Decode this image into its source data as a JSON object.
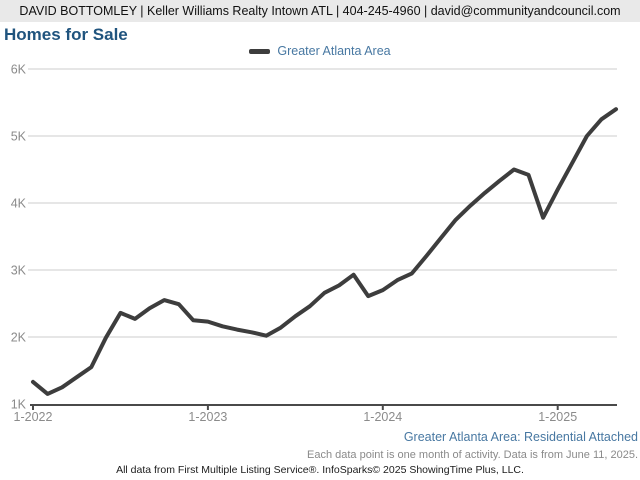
{
  "header": {
    "contact_line": "DAVID BOTTOMLEY | Keller Williams Realty Intown ATL | 404-245-4960 | david@communityandcouncil.com"
  },
  "title": "Homes for Sale",
  "legend": {
    "label": "Greater Atlanta Area"
  },
  "footnotes": {
    "series_caption": "Greater Atlanta Area: Residential Attached",
    "data_note": "Each data point is one month of activity. Data is from June 11, 2025.",
    "attribution": "All data from First Multiple Listing Service®. InfoSparks© 2025 ShowingTime Plus, LLC."
  },
  "colors": {
    "header_bg": "#e9e9e9",
    "header_text": "#111111",
    "accent_blue_dark": "#20547e",
    "accent_blue": "#4878a2",
    "grid": "#cccccc",
    "axis": "#4a4a4a",
    "axis_label": "#8b8b8b",
    "muted_text": "#8a8a8a",
    "footer_text": "#1c1c1c"
  },
  "chart_data": {
    "type": "line",
    "title": "Homes for Sale",
    "xlabel": "",
    "ylabel": "",
    "grid": true,
    "legend_position": "top-center",
    "ylim": [
      1000,
      6000
    ],
    "y_ticks": [
      1000,
      2000,
      3000,
      4000,
      5000,
      6000
    ],
    "y_tick_labels": [
      "1K",
      "2K",
      "3K",
      "4K",
      "5K",
      "6K"
    ],
    "x_tick_labels": [
      "1-2022",
      "1-2023",
      "1-2024",
      "1-2025"
    ],
    "x_tick_indices": [
      0,
      12,
      24,
      36
    ],
    "x": [
      "1-2022",
      "2-2022",
      "3-2022",
      "4-2022",
      "5-2022",
      "6-2022",
      "7-2022",
      "8-2022",
      "9-2022",
      "10-2022",
      "11-2022",
      "12-2022",
      "1-2023",
      "2-2023",
      "3-2023",
      "4-2023",
      "5-2023",
      "6-2023",
      "7-2023",
      "8-2023",
      "9-2023",
      "10-2023",
      "11-2023",
      "12-2023",
      "1-2024",
      "2-2024",
      "3-2024",
      "4-2024",
      "5-2024",
      "6-2024",
      "7-2024",
      "8-2024",
      "9-2024",
      "10-2024",
      "11-2024",
      "12-2024",
      "1-2025",
      "2-2025",
      "3-2025",
      "4-2025",
      "5-2025"
    ],
    "series": [
      {
        "name": "Greater Atlanta Area",
        "color": "#3d3d3d",
        "values": [
          1330,
          1150,
          1250,
          1400,
          1550,
          1990,
          2360,
          2270,
          2430,
          2550,
          2490,
          2250,
          2230,
          2160,
          2110,
          2070,
          2020,
          2140,
          2310,
          2460,
          2660,
          2770,
          2930,
          2610,
          2700,
          2850,
          2950,
          3210,
          3480,
          3750,
          3960,
          4150,
          4330,
          4500,
          4420,
          3780,
          4200,
          4600,
          5000,
          5250,
          5400
        ]
      }
    ]
  }
}
